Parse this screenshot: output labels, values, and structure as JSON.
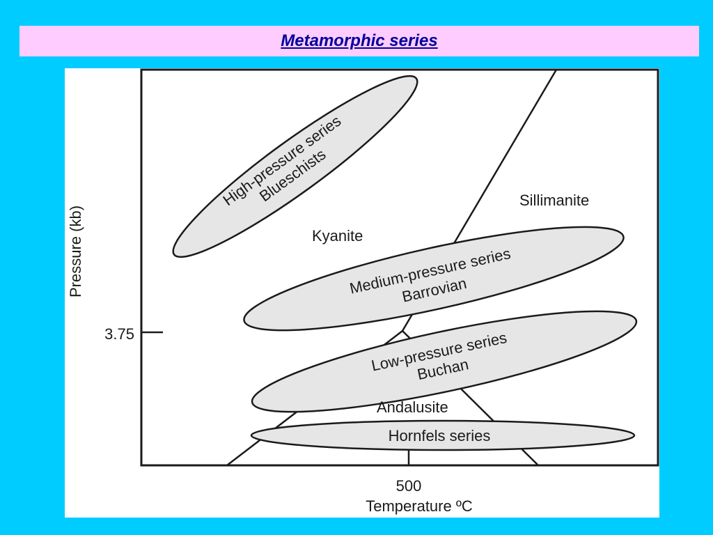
{
  "title": "Metamorphic series",
  "diagram": {
    "axis": {
      "x_label": "Temperature ºC",
      "y_label": "Pressure (kb)",
      "x_tick": "500",
      "y_tick": "3.75"
    },
    "fields": {
      "kyanite": "Kyanite",
      "sillimanite": "Sillimanite",
      "andalusite": "Andalusite"
    },
    "series": [
      {
        "line1": "High-pressure series",
        "line2": "Blueschists"
      },
      {
        "line1": "Medium-pressure series",
        "line2": "Barrovian"
      },
      {
        "line1": "Low-pressure series",
        "line2": "Buchan"
      },
      {
        "line1": "Hornfels series"
      }
    ]
  }
}
